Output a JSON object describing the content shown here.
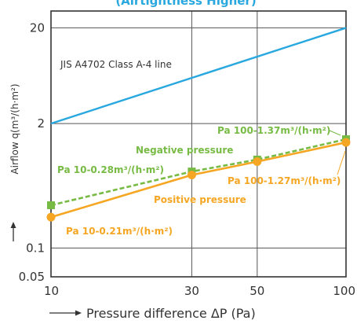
{
  "chart_data": {
    "type": "line",
    "title": "(Airtightness Higher)",
    "xlabel": "Pressure difference ΔP (Pa)",
    "ylabel": "Airflow q(m³/(h·m²)",
    "x_scale": "log",
    "y_scale": "log",
    "xlim": [
      10,
      100
    ],
    "ylim": [
      0.05,
      30
    ],
    "x_ticks": [
      "10",
      "30",
      "50",
      "100"
    ],
    "y_ticks": [
      "20",
      "2",
      "0.1",
      "0.05"
    ],
    "grid": true,
    "series": [
      {
        "name": "JIS A4702 Class A-4 line",
        "color": "#29a8df",
        "style": "solid",
        "marker": "none",
        "x": [
          10,
          100
        ],
        "y": [
          2,
          20
        ]
      },
      {
        "name": "Negative pressure",
        "color": "#77bb44",
        "style": "dashed",
        "marker": "square",
        "x": [
          10,
          30,
          50,
          100
        ],
        "y": [
          0.28,
          0.63,
          0.84,
          1.37
        ]
      },
      {
        "name": "Positive pressure",
        "color": "#f5a623",
        "style": "solid",
        "marker": "circle",
        "x": [
          10,
          30,
          50,
          100
        ],
        "y": [
          0.21,
          0.58,
          0.8,
          1.27
        ]
      }
    ],
    "annotations": {
      "jis": "JIS A4702  Class A-4 line",
      "neg_label": "Negative pressure",
      "pos_label": "Positive pressure",
      "neg_10": "Pa 10-0.28m³/(h·m²)",
      "neg_100": "Pa 100-1.37m³/(h·m²)",
      "pos_10": "Pa 10-0.21m³/(h·m²)",
      "pos_100": "Pa 100-1.27m³/(h·m²)"
    }
  }
}
